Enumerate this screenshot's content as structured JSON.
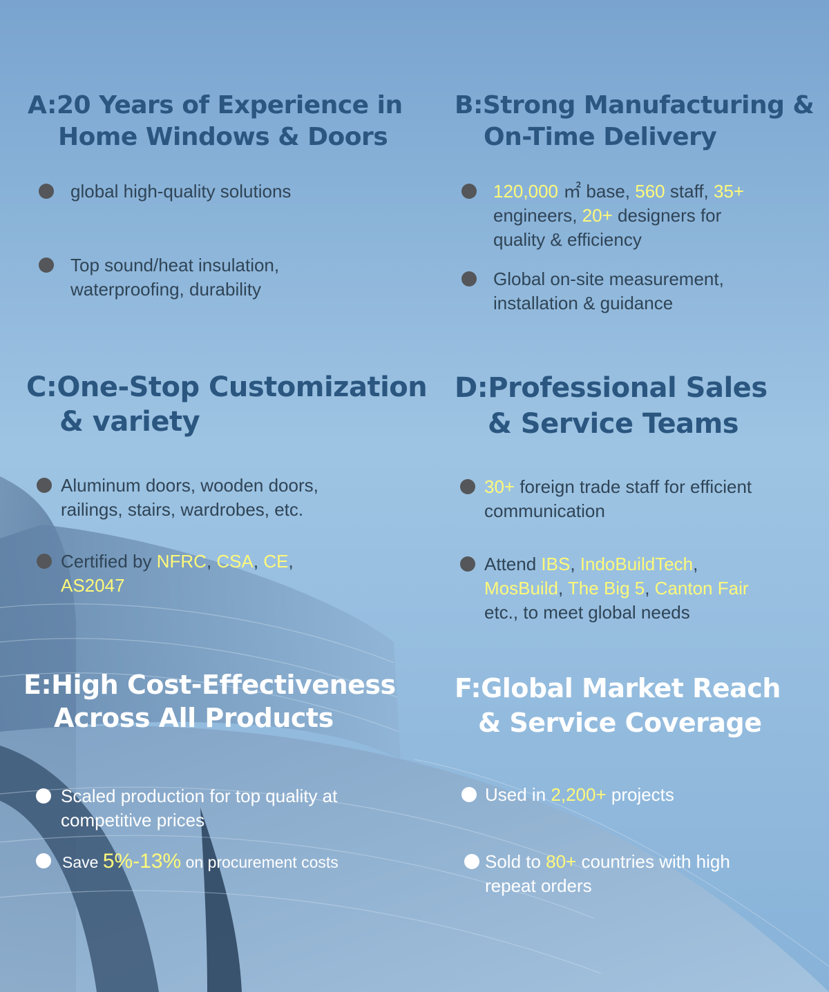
{
  "colors": {
    "heading_dark": "#2a5680",
    "heading_light": "#ffffff",
    "text_dark": "#2f4456",
    "highlight": "#fff97a",
    "background": "#8db6dd"
  },
  "sections": {
    "a": {
      "letter": "A:",
      "title_line1": "20 Years of Experience in",
      "title_line2": "Home Windows & Doors",
      "b1": "global high-quality solutions",
      "b2_line1": "Top sound/heat insulation,",
      "b2_line2": "waterproofing, durability"
    },
    "b": {
      "letter": "B:",
      "title_line1": "Strong Manufacturing &",
      "title_line2": "On-Time Delivery",
      "b1": {
        "v1": "120,000",
        "t1": " ㎡ base, ",
        "v2": "560",
        "t2": " staff, ",
        "v3": "35+",
        "t3": "engineers, ",
        "v4": "20+",
        "t4": " designers for",
        "t5": "quality & efficiency"
      },
      "b2_line1": "Global on-site measurement,",
      "b2_line2": "installation & guidance"
    },
    "c": {
      "letter": "C:",
      "title_line1": "One-Stop Customization",
      "title_line2": "& variety",
      "b1_line1": "Aluminum doors, wooden doors,",
      "b1_line2": "railings, stairs, wardrobes, etc.",
      "b2": {
        "t1": "Certified by ",
        "c1": "NFRC",
        "s1": ", ",
        "c2": "CSA",
        "s2": ", ",
        "c3": "CE",
        "s3": ",",
        "c4": "AS2047"
      }
    },
    "d": {
      "letter": "D:",
      "title_line1": "Professional Sales",
      "title_line2": "& Service Teams",
      "b1": {
        "v1": "30+",
        "t1": " foreign trade staff for efficient",
        "t2": "communication"
      },
      "b2": {
        "t1": "Attend ",
        "e1": "IBS",
        "s1": ", ",
        "e2": "IndoBuildTech",
        "s2": ",",
        "e3": "MosBuild",
        "s3": ", ",
        "e4": "The Big 5",
        "s4": ", ",
        "e5": "Canton Fair",
        "t2": "etc., to meet global needs"
      }
    },
    "e": {
      "letter": "E:",
      "title_line1": "High Cost-Effectiveness",
      "title_line2": "Across All Products",
      "b1_line1": "Scaled production for top quality at",
      "b1_line2": "competitive prices",
      "b2": {
        "t1": "Save ",
        "v1": "5%-13%",
        "t2": " on procurement costs"
      }
    },
    "f": {
      "letter": "F:",
      "title_line1": "Global Market Reach",
      "title_line2": "& Service Coverage",
      "b1": {
        "t1": "Used in ",
        "v1": "2,200+",
        "t2": " projects"
      },
      "b2": {
        "t1": "Sold to ",
        "v1": "80+",
        "t2": " countries with high",
        "t3": "repeat orders"
      }
    }
  }
}
